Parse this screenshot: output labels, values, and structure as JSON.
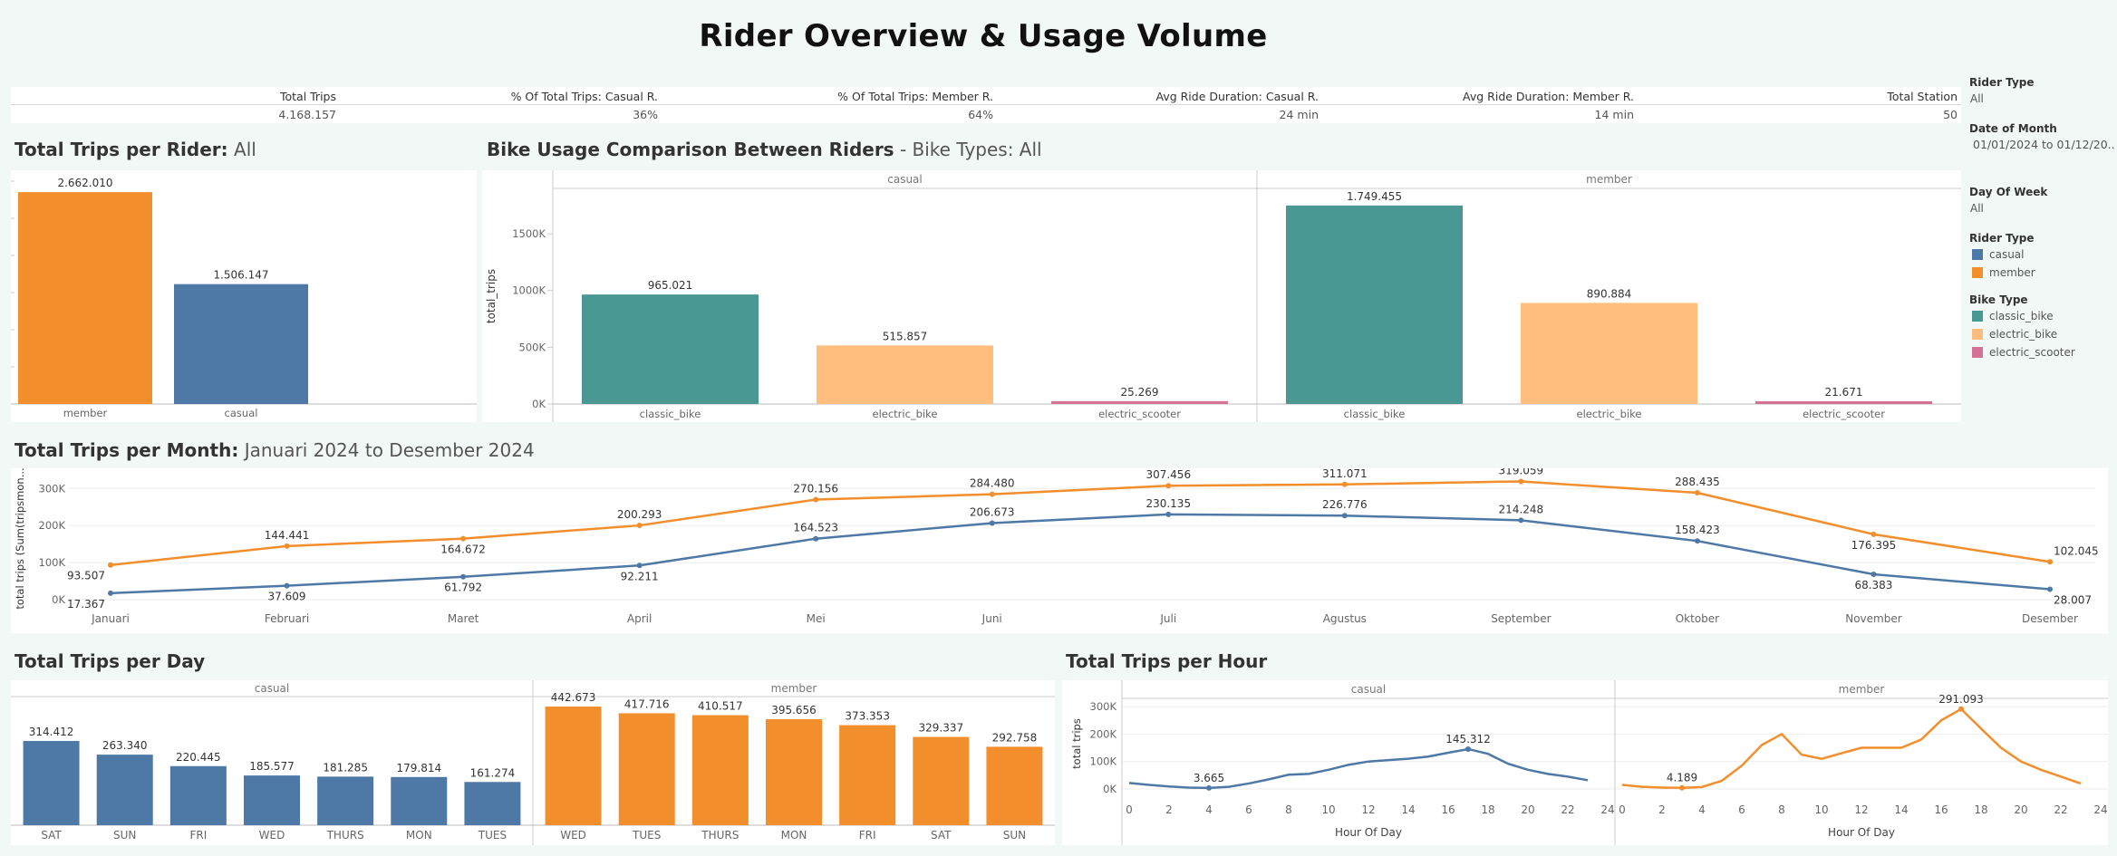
{
  "title": "Rider Overview & Usage Volume",
  "colors": {
    "casual": "#4e79a7",
    "member": "#f28e2b",
    "classic_bike": "#499894",
    "electric_bike": "#ffbe7d",
    "electric_scooter": "#d37295"
  },
  "kpis": {
    "headers": [
      "Total Trips",
      "% Of Total Trips: Casual R.",
      "% Of Total Trips: Member R.",
      "Avg Ride Duration: Casual R.",
      "Avg Ride Duration: Member R.",
      "Total Station"
    ],
    "values": [
      "4.168.157",
      "36%",
      "64%",
      "24 min",
      "14 min",
      "50"
    ]
  },
  "filters": {
    "rider_type_label": "Rider Type",
    "rider_type_value": "All",
    "date_label": "Date of Month",
    "date_value": "01/01/2024 to 01/12/20..",
    "dow_label": "Day Of Week",
    "dow_value": "All",
    "legend_rider_title": "Rider Type",
    "legend_rider": [
      "casual",
      "member"
    ],
    "legend_bike_title": "Bike Type",
    "legend_bike": [
      "classic_bike",
      "electric_bike",
      "electric_scooter"
    ]
  },
  "sections": {
    "rider": {
      "title": "Total Trips per Rider:",
      "sub": "All"
    },
    "bike": {
      "title": "Bike Usage Comparison Between Riders",
      "sub": "- Bike Types: All"
    },
    "month": {
      "title": "Total Trips per Month:",
      "sub": "Januari 2024 to Desember 2024"
    },
    "day": {
      "title": "Total Trips per Day"
    },
    "hour": {
      "title": "Total Trips per Hour"
    }
  },
  "chart_data": [
    {
      "id": "rider",
      "type": "bar",
      "title": "Total Trips per Rider: All",
      "categories": [
        "member",
        "casual"
      ],
      "values": [
        2662010,
        1506147
      ],
      "labels": [
        "2.662.010",
        "1.506.147"
      ],
      "ylim": [
        0,
        2800000
      ]
    },
    {
      "id": "bike",
      "type": "bar",
      "title": "Bike Usage Comparison Between Riders - Bike Types: All",
      "ylabel": "total_trips",
      "yticks": [
        "0K",
        "500K",
        "1000K",
        "1500K"
      ],
      "ylim": [
        0,
        1900000
      ],
      "facets": [
        {
          "name": "casual",
          "categories": [
            "classic_bike",
            "electric_bike",
            "electric_scooter"
          ],
          "values": [
            965021,
            515857,
            25269
          ],
          "labels": [
            "965.021",
            "515.857",
            "25.269"
          ]
        },
        {
          "name": "member",
          "categories": [
            "classic_bike",
            "electric_bike",
            "electric_scooter"
          ],
          "values": [
            1749455,
            890884,
            21671
          ],
          "labels": [
            "1.749.455",
            "890.884",
            "21.671"
          ]
        }
      ]
    },
    {
      "id": "month",
      "type": "line",
      "title": "Total Trips per Month: Januari 2024 to Desember 2024",
      "ylabel": "total trips (Sum(tripsmon...",
      "yticks": [
        "0K",
        "100K",
        "200K",
        "300K"
      ],
      "ylim": [
        0,
        330000
      ],
      "x": [
        "Januari",
        "Februari",
        "Maret",
        "April",
        "Mei",
        "Juni",
        "Juli",
        "Agustus",
        "September",
        "Oktober",
        "November",
        "Desember"
      ],
      "series": [
        {
          "name": "member",
          "values": [
            93507,
            144441,
            164672,
            200293,
            270156,
            284480,
            307456,
            311071,
            319059,
            288435,
            176395,
            102045
          ],
          "labels": [
            "93.507",
            "144.441",
            "164.672",
            "200.293",
            "270.156",
            "284.480",
            "307.456",
            "311.071",
            "319.059",
            "288.435",
            "176.395",
            "102.045"
          ]
        },
        {
          "name": "casual",
          "values": [
            17367,
            37609,
            61792,
            92211,
            164523,
            206673,
            230135,
            226776,
            214248,
            158423,
            68383,
            28007
          ],
          "labels": [
            "17.367",
            "37.609",
            "61.792",
            "92.211",
            "164.523",
            "206.673",
            "230.135",
            "226.776",
            "214.248",
            "158.423",
            "68.383",
            "28.007"
          ]
        }
      ]
    },
    {
      "id": "day",
      "type": "bar",
      "title": "Total Trips per Day",
      "ylim": [
        0,
        480000
      ],
      "facets": [
        {
          "name": "casual",
          "categories": [
            "SAT",
            "SUN",
            "FRI",
            "WED",
            "THURS",
            "MON",
            "TUES"
          ],
          "values": [
            314412,
            263340,
            220445,
            185577,
            181285,
            179814,
            161274
          ],
          "labels": [
            "314.412",
            "263.340",
            "220.445",
            "185.577",
            "181.285",
            "179.814",
            "161.274"
          ]
        },
        {
          "name": "member",
          "categories": [
            "WED",
            "TUES",
            "THURS",
            "MON",
            "FRI",
            "SAT",
            "SUN"
          ],
          "values": [
            442673,
            417716,
            410517,
            395656,
            373353,
            329337,
            292758
          ],
          "labels": [
            "442.673",
            "417.716",
            "410.517",
            "395.656",
            "373.353",
            "329.337",
            "292.758"
          ]
        }
      ]
    },
    {
      "id": "hour",
      "type": "line",
      "title": "Total Trips per Hour",
      "ylabel": "total trips",
      "xlabel": "Hour Of Day",
      "yticks": [
        "0K",
        "100K",
        "200K",
        "300K"
      ],
      "ylim": [
        0,
        330000
      ],
      "xticks": [
        "0",
        "2",
        "4",
        "6",
        "8",
        "10",
        "12",
        "14",
        "16",
        "18",
        "20",
        "22",
        "24"
      ],
      "facets": [
        {
          "name": "casual",
          "x": [
            0,
            1,
            2,
            3,
            4,
            5,
            6,
            7,
            8,
            9,
            10,
            11,
            12,
            13,
            14,
            15,
            16,
            17,
            18,
            19,
            20,
            21,
            22,
            23
          ],
          "values": [
            22000,
            15000,
            9000,
            5000,
            3665,
            8000,
            20000,
            35000,
            52000,
            55000,
            70000,
            88000,
            100000,
            105000,
            110000,
            118000,
            132000,
            145312,
            128000,
            92000,
            70000,
            55000,
            45000,
            32000
          ],
          "labels": {
            "4": "3.665",
            "17": "145.312"
          }
        },
        {
          "name": "member",
          "x": [
            0,
            1,
            2,
            3,
            4,
            5,
            6,
            7,
            8,
            9,
            10,
            11,
            12,
            13,
            14,
            15,
            16,
            17,
            18,
            19,
            20,
            21,
            22,
            23
          ],
          "values": [
            15000,
            8000,
            5000,
            4189,
            7000,
            30000,
            85000,
            160000,
            200000,
            125000,
            110000,
            130000,
            150000,
            150000,
            150000,
            180000,
            250000,
            291093,
            220000,
            150000,
            100000,
            70000,
            45000,
            20000
          ],
          "labels": {
            "3": "4.189",
            "17": "291.093"
          }
        }
      ]
    }
  ]
}
